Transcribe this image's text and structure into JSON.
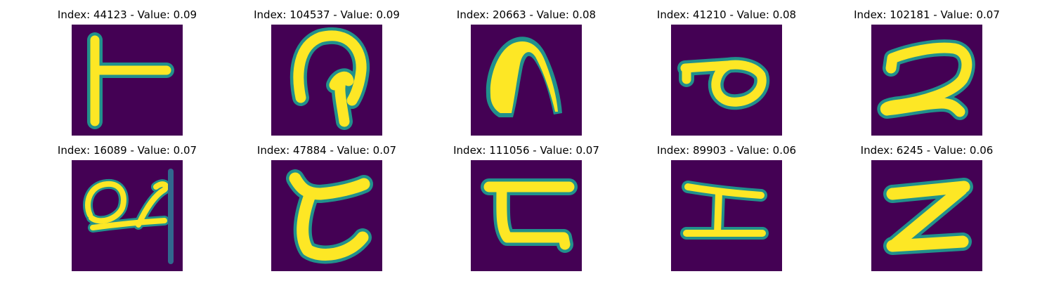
{
  "colors": {
    "background": "#440154",
    "foreground": "#fde725",
    "edge": "#35b779",
    "edge_dark": "#21918c"
  },
  "images": [
    {
      "title": "Index: 44123 - Value: 0.09"
    },
    {
      "title": "Index: 104537 - Value: 0.09"
    },
    {
      "title": "Index: 20663 - Value: 0.08"
    },
    {
      "title": "Index: 41210 - Value: 0.08"
    },
    {
      "title": "Index: 102181 - Value: 0.07"
    },
    {
      "title": "Index: 16089 - Value: 0.07"
    },
    {
      "title": "Index: 47884 - Value: 0.07"
    },
    {
      "title": "Index: 111056 - Value: 0.07"
    },
    {
      "title": "Index: 89903 - Value: 0.06"
    },
    {
      "title": "Index: 6245 - Value: 0.06"
    }
  ]
}
